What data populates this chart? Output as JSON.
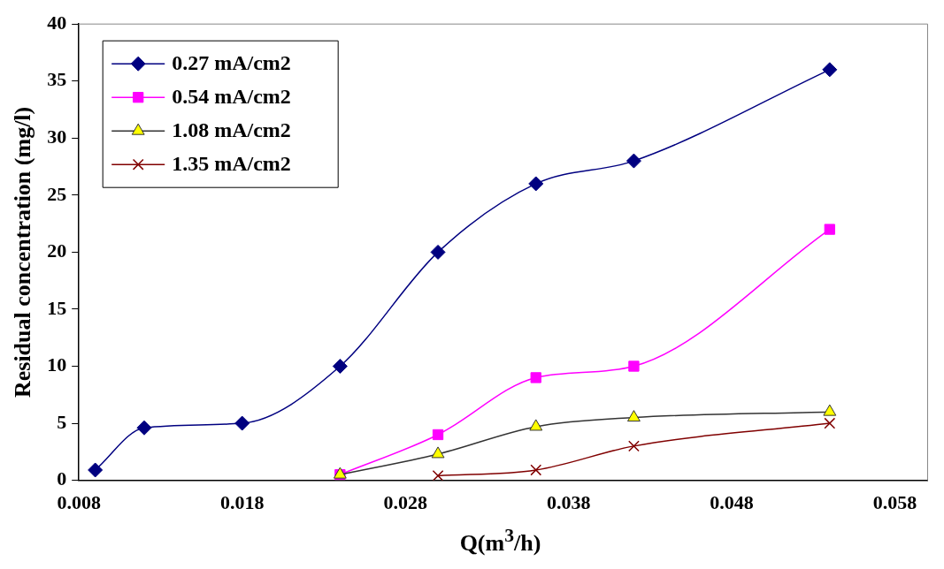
{
  "chart_data": {
    "type": "line",
    "xlabel": "Q(m$^{3}$/h)",
    "ylabel": "Residual concentration (mg/l)",
    "xlim": [
      0.008,
      0.06
    ],
    "xticks": [
      0.008,
      0.018,
      0.028,
      0.038,
      0.048,
      0.058
    ],
    "ylim": [
      0,
      40
    ],
    "yticks": [
      0,
      5,
      10,
      15,
      20,
      25,
      30,
      35,
      40
    ],
    "grid": false,
    "legend": "top left",
    "series": [
      {
        "name": "0.27 mA/cm2",
        "color": "#000080",
        "marker": "diamond",
        "x": [
          0.009,
          0.012,
          0.018,
          0.024,
          0.03,
          0.036,
          0.042,
          0.054
        ],
        "values": [
          0.9,
          4.6,
          5,
          10,
          20,
          26,
          28,
          36
        ]
      },
      {
        "name": "0.54 mA/cm2",
        "color": "#ff00ff",
        "marker": "square",
        "x": [
          0.024,
          0.03,
          0.036,
          0.042,
          0.054
        ],
        "values": [
          0.5,
          4,
          9,
          10,
          22
        ]
      },
      {
        "name": "1.08 mA/cm2",
        "color": "#333333",
        "marker": "triangle",
        "x": [
          0.024,
          0.03,
          0.036,
          0.042,
          0.054
        ],
        "values": [
          0.5,
          2.3,
          4.7,
          5.5,
          6
        ]
      },
      {
        "name": "1.35 mA/cm2",
        "color": "#800000",
        "marker": "cross",
        "x": [
          0.03,
          0.036,
          0.042,
          0.054
        ],
        "values": [
          0.4,
          0.9,
          3,
          5
        ]
      }
    ]
  }
}
